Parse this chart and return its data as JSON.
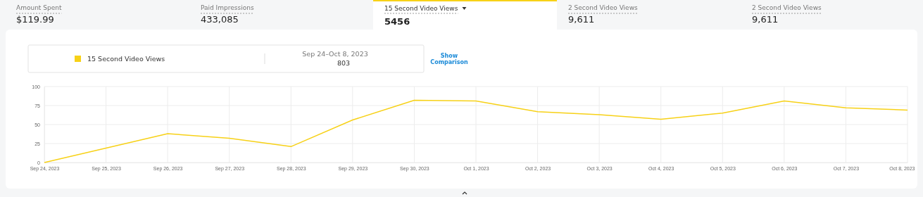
{
  "chart_data": {
    "type": "line",
    "categories": [
      "Sep 24, 2023",
      "Sep 25, 2023",
      "Sep 26, 2023",
      "Sep 27, 2023",
      "Sep 28, 2023",
      "Sep 29, 2023",
      "Sep 30, 2023",
      "Oct 1, 2023",
      "Oct 2, 2023",
      "Oct 3, 2023",
      "Oct 4, 2023",
      "Oct 5, 2023",
      "Oct 6, 2023",
      "Oct 7, 2023",
      "Oct 8, 2023"
    ],
    "series": [
      {
        "name": "15 Second Video Views",
        "color": "#f7d117",
        "values": [
          0,
          19,
          38,
          32,
          21,
          56,
          82,
          81,
          67,
          63,
          57,
          65,
          81,
          72,
          69
        ]
      }
    ],
    "ylim": [
      0,
      100
    ],
    "yticks": [
      0,
      25,
      50,
      75,
      100
    ],
    "grid": true,
    "legend": "top left",
    "marker": "none",
    "line_style": "solid",
    "annotations": [
      "Amount Spent",
      "$119.99",
      "Paid Impressions",
      "433,085",
      "15 Second Video Views",
      "5456",
      "2 Second Video Views",
      "9,611",
      "2 Second Video Views",
      "9,611",
      "Sep 24–Oct 8, 2023",
      "803",
      "Show Comparison"
    ]
  }
}
